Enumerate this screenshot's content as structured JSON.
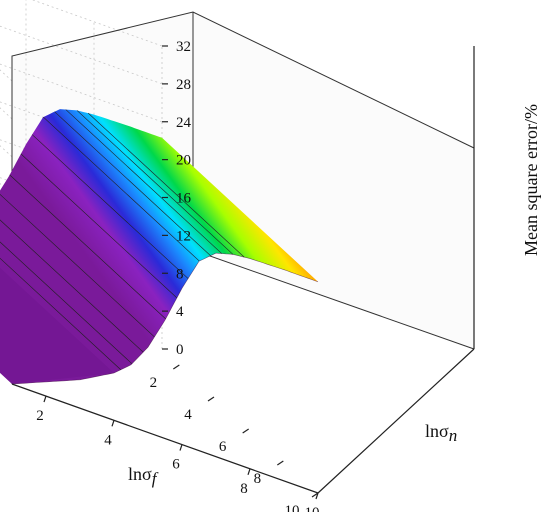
{
  "chart_data": {
    "type": "surface3d",
    "title": "",
    "x_axis": {
      "label_base": "lnσ",
      "label_sub": "f",
      "ticks": [
        2,
        4,
        6,
        8,
        10
      ],
      "range": [
        1,
        10
      ]
    },
    "y_axis": {
      "label_base": "lnσ",
      "label_sub": "n",
      "ticks": [
        2,
        4,
        6,
        8,
        10
      ],
      "range": [
        1,
        10
      ]
    },
    "z_axis": {
      "label": "Mean square error/%",
      "ticks": [
        0,
        4,
        8,
        12,
        16,
        20,
        24,
        28,
        32
      ],
      "range": [
        0,
        32
      ]
    },
    "surface": {
      "description_of_shape": "error depends on lnσf only",
      "x": [
        1,
        2,
        3,
        4,
        4.5,
        5,
        5.5,
        6,
        6.5,
        7,
        7.5,
        8,
        9,
        10
      ],
      "z": [
        0,
        1.5,
        3,
        5,
        6.5,
        9,
        12.5,
        16.5,
        20,
        21.5,
        22,
        22.2,
        22.3,
        22.3
      ]
    },
    "grid": true
  }
}
